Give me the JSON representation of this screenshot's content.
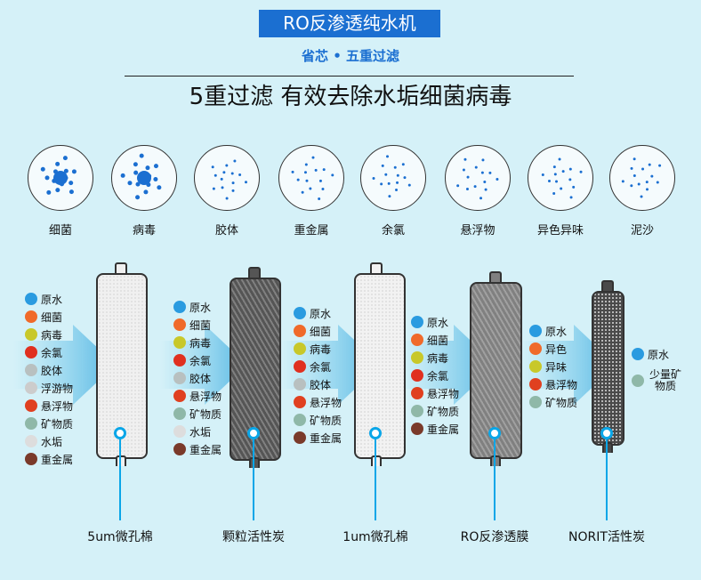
{
  "header": {
    "title": "RO反渗透纯水机",
    "subtitle": "省芯 • 五重过滤",
    "headline": "5重过滤 有效去除水垢细菌病毒"
  },
  "contaminants": [
    "细菌",
    "病毒",
    "胶体",
    "重金属",
    "余氯",
    "悬浮物",
    "异色异味",
    "泥沙"
  ],
  "stages": [
    {
      "items": [
        "原水",
        "细菌",
        "病毒",
        "余氯",
        "胶体",
        "浮游物",
        "悬浮物",
        "矿物质",
        "水垢",
        "重金属"
      ]
    },
    {
      "items": [
        "原水",
        "细菌",
        "病毒",
        "余氯",
        "胶体",
        "悬浮物",
        "矿物质",
        "水垢",
        "重金属"
      ]
    },
    {
      "items": [
        "原水",
        "细菌",
        "病毒",
        "余氯",
        "胶体",
        "悬浮物",
        "矿物质",
        "重金属"
      ]
    },
    {
      "items": [
        "原水",
        "细菌",
        "病毒",
        "余氯",
        "悬浮物",
        "矿物质",
        "重金属"
      ]
    },
    {
      "items": [
        "原水",
        "异色",
        "异味",
        "悬浮物",
        "矿物质"
      ]
    },
    {
      "items": [
        "原水",
        "少量矿物质"
      ]
    }
  ],
  "filters": [
    {
      "label": "5um微孔棉",
      "color": "#f0f0f0"
    },
    {
      "label": "颗粒活性炭",
      "color": "#555555"
    },
    {
      "label": "1um微孔棉",
      "color": "#f2f2f2"
    },
    {
      "label": "RO反渗透膜",
      "color": "#808080"
    },
    {
      "label": "NORIT活性炭",
      "color": "#4a4a4a"
    }
  ],
  "colors": {
    "background": "#d5f1f8",
    "accent": "#1b6fd1",
    "marker": "#0aa6e8"
  }
}
